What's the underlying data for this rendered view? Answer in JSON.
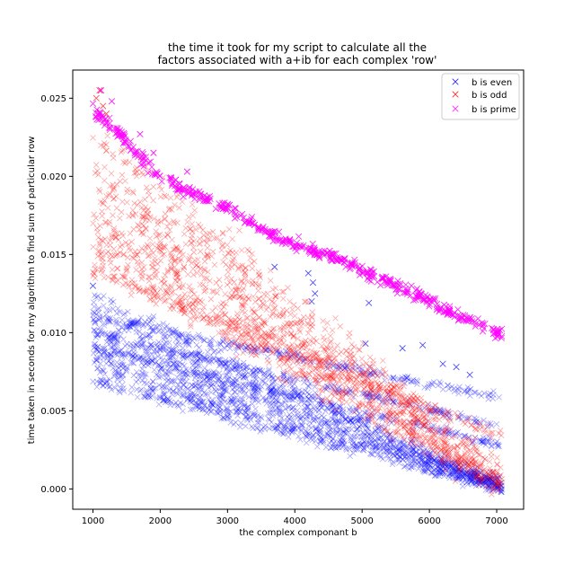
{
  "chart_data": {
    "type": "scatter",
    "title_lines": [
      "the time it took for my script to calculate all the",
      "factors associated with a+ib for each complex 'row'"
    ],
    "xlabel": "the complex componant b",
    "ylabel": "time taken in seconds for my algorithm to find sum of particular row",
    "xlim": [
      700,
      7400
    ],
    "ylim": [
      -0.0013,
      0.0268
    ],
    "xticks": [
      1000,
      2000,
      3000,
      4000,
      5000,
      6000,
      7000
    ],
    "yticks": [
      0.0,
      0.005,
      0.01,
      0.015,
      0.02,
      0.025
    ],
    "ytick_labels": [
      "0.000",
      "0.005",
      "0.010",
      "0.015",
      "0.020",
      "0.025"
    ],
    "marker": "x",
    "legend_position": "top-right",
    "series": [
      {
        "name": "b is even",
        "color": "#0000ff",
        "alpha": 0.35,
        "x_range": [
          1000,
          7080
        ],
        "bands": [
          {
            "x": [
              1000,
              7080
            ],
            "y": [
              0.0122,
              0.0001
            ],
            "spread": 0.0006
          },
          {
            "x": [
              1000,
              7080
            ],
            "y": [
              0.0112,
              0.0003
            ],
            "spread": 0.0005
          },
          {
            "x": [
              1000,
              7080
            ],
            "y": [
              0.0101,
              0.0002
            ],
            "spread": 0.0005
          },
          {
            "x": [
              1000,
              7080
            ],
            "y": [
              0.0093,
              0.0002
            ],
            "spread": 0.0005
          },
          {
            "x": [
              1000,
              7080
            ],
            "y": [
              0.0084,
              0.0001
            ],
            "spread": 0.0005
          },
          {
            "x": [
              1000,
              7080
            ],
            "y": [
              0.0076,
              0.0001
            ],
            "spread": 0.0004
          },
          {
            "x": [
              1000,
              7080
            ],
            "y": [
              0.0069,
              0.0
            ],
            "spread": 0.0004
          },
          {
            "x": [
              1000,
              7080
            ],
            "y": [
              0.011,
              0.0058
            ],
            "spread": 0.0003
          },
          {
            "x": [
              1000,
              7080
            ],
            "y": [
              0.01,
              0.004
            ],
            "spread": 0.0003
          },
          {
            "x": [
              1000,
              7080
            ],
            "y": [
              0.009,
              0.0028
            ],
            "spread": 0.0003
          }
        ],
        "outliers": [
          [
            4200,
            0.0138
          ],
          [
            4270,
            0.0132
          ],
          [
            4300,
            0.0125
          ],
          [
            4250,
            0.012
          ],
          [
            3700,
            0.0142
          ],
          [
            5100,
            0.0119
          ],
          [
            5600,
            0.009
          ],
          [
            5050,
            0.0093
          ],
          [
            6400,
            0.0078
          ],
          [
            5900,
            0.0092
          ],
          [
            6600,
            0.0073
          ],
          [
            1000,
            0.013
          ],
          [
            6200,
            0.008
          ]
        ]
      },
      {
        "name": "b is odd",
        "color": "#ff0000",
        "alpha": 0.35,
        "x_range": [
          1000,
          7080
        ],
        "bands": [
          {
            "x": [
              1000,
              7080
            ],
            "y": [
              0.0225,
              0.0008
            ],
            "spread": 0.0012
          },
          {
            "x": [
              1000,
              7080
            ],
            "y": [
              0.0205,
              0.0006
            ],
            "spread": 0.0012
          },
          {
            "x": [
              1000,
              7080
            ],
            "y": [
              0.019,
              0.0004
            ],
            "spread": 0.0012
          },
          {
            "x": [
              1000,
              7080
            ],
            "y": [
              0.0175,
              0.0002
            ],
            "spread": 0.001
          },
          {
            "x": [
              1000,
              7080
            ],
            "y": [
              0.016,
              0.0001
            ],
            "spread": 0.001
          },
          {
            "x": [
              1000,
              7080
            ],
            "y": [
              0.015,
              0.0
            ],
            "spread": 0.001
          },
          {
            "x": [
              1000,
              7080
            ],
            "y": [
              0.014,
              0.0033
            ],
            "spread": 0.0005
          }
        ],
        "outliers": [
          [
            1100,
            0.0255
          ],
          [
            1050,
            0.025
          ],
          [
            1150,
            0.0245
          ],
          [
            1200,
            0.024
          ]
        ]
      },
      {
        "name": "b is prime",
        "color": "#ff00ff",
        "alpha": 0.9,
        "x_range": [
          1000,
          7080
        ],
        "curve": [
          [
            1000,
            0.0243
          ],
          [
            1200,
            0.0236
          ],
          [
            1500,
            0.0222
          ],
          [
            2000,
            0.0199
          ],
          [
            2500,
            0.0189
          ],
          [
            3000,
            0.018
          ],
          [
            3500,
            0.0166
          ],
          [
            4000,
            0.0157
          ],
          [
            4500,
            0.0149
          ],
          [
            5000,
            0.014
          ],
          [
            5500,
            0.013
          ],
          [
            6000,
            0.012
          ],
          [
            6500,
            0.0109
          ],
          [
            7000,
            0.01
          ],
          [
            7080,
            0.0098
          ]
        ],
        "spread": 0.0004,
        "outliers": [
          [
            1120,
            0.0255
          ],
          [
            1280,
            0.0248
          ],
          [
            1700,
            0.0227
          ],
          [
            1900,
            0.0215
          ],
          [
            2400,
            0.0203
          ]
        ]
      }
    ]
  }
}
